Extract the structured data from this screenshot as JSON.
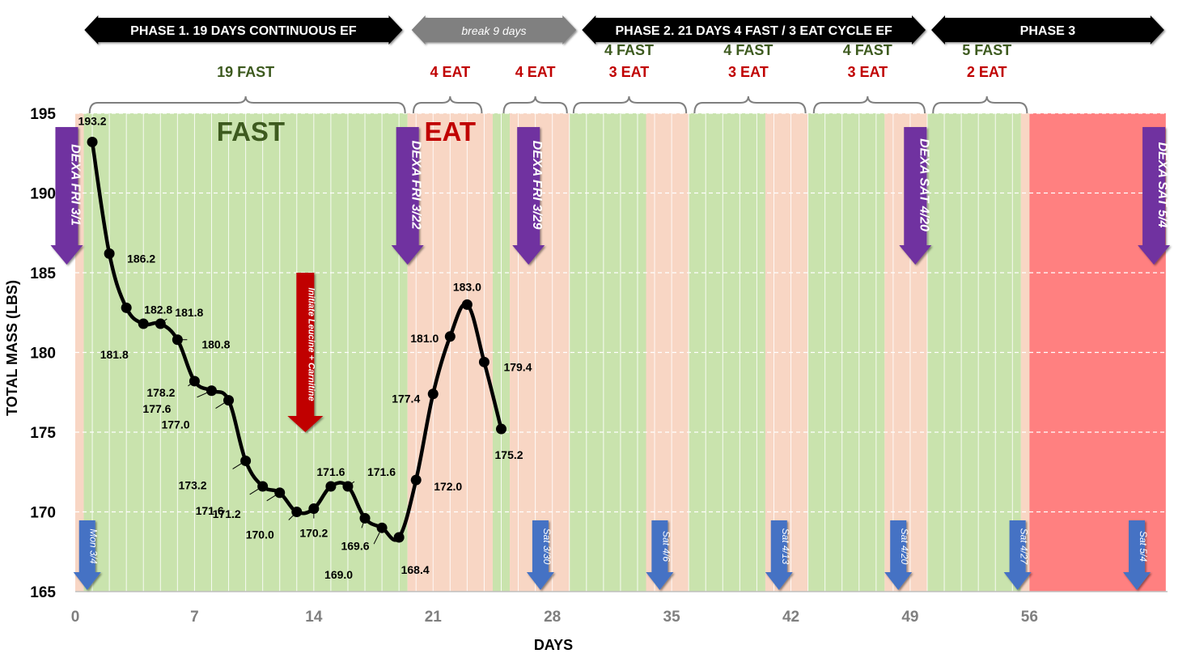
{
  "chart_data": {
    "type": "line",
    "xlabel": "DAYS",
    "ylabel": "TOTAL MASS (LBS)",
    "xlim": [
      0,
      64
    ],
    "ylim": [
      165,
      195
    ],
    "x_ticks": [
      0,
      7,
      14,
      21,
      28,
      35,
      42,
      49,
      56
    ],
    "y_ticks": [
      165,
      170,
      175,
      180,
      185,
      190,
      195
    ],
    "grid": "horizontal dashed white + vertical daily white lines",
    "colors": {
      "fast_band": "#c9e3ad",
      "eat_band": "#f8d6c4",
      "phase3_band": "#ff8080",
      "line": "#000000",
      "fast_text": "#3d5a1f",
      "eat_text": "#c00000",
      "dexa_arrow": "#7030a0",
      "sat_arrow": "#4472c4",
      "leucine_arrow": "#c00000",
      "phase_arrow": "#000000",
      "break_arrow": "#808080"
    },
    "series": [
      {
        "x": [
          1,
          2,
          3,
          4,
          5,
          6,
          7,
          8,
          9,
          10,
          11,
          12,
          13,
          14,
          15,
          16,
          17,
          18,
          19,
          20,
          21,
          22,
          23,
          24,
          25
        ],
        "values": [
          193.2,
          186.2,
          182.8,
          181.8,
          181.8,
          180.8,
          178.2,
          177.6,
          177.0,
          173.2,
          171.6,
          171.2,
          170.0,
          170.2,
          171.6,
          171.6,
          169.6,
          169.0,
          168.4,
          172.0,
          177.4,
          181.0,
          183.0,
          179.4,
          175.2
        ],
        "labels": [
          "193.2",
          "186.2",
          "182.8",
          "181.8",
          "181.8",
          "180.8",
          "178.2",
          "177.6",
          "177.0",
          "173.2",
          "171.6",
          "171.2",
          "170.0",
          "170.2",
          "171.6",
          "171.6",
          "169.6",
          "169.0",
          "168.4",
          "172.0",
          "177.4",
          "181.0",
          "183.0",
          "179.4",
          "175.2"
        ]
      }
    ],
    "bands": [
      {
        "start": 0,
        "end": 0.5,
        "kind": "eat"
      },
      {
        "start": 0.5,
        "end": 19.5,
        "kind": "fast"
      },
      {
        "start": 19.5,
        "end": 24.5,
        "kind": "eat"
      },
      {
        "start": 24.5,
        "end": 25.5,
        "kind": "fast"
      },
      {
        "start": 25.5,
        "end": 29.0,
        "kind": "eat"
      },
      {
        "start": 29.0,
        "end": 33.5,
        "kind": "fast"
      },
      {
        "start": 33.5,
        "end": 36.0,
        "kind": "eat"
      },
      {
        "start": 36.0,
        "end": 40.5,
        "kind": "fast"
      },
      {
        "start": 40.5,
        "end": 43.0,
        "kind": "eat"
      },
      {
        "start": 43.0,
        "end": 47.5,
        "kind": "fast"
      },
      {
        "start": 47.5,
        "end": 50.0,
        "kind": "eat"
      },
      {
        "start": 50.0,
        "end": 55.5,
        "kind": "fast"
      },
      {
        "start": 55.5,
        "end": 56.0,
        "kind": "eat"
      },
      {
        "start": 56.0,
        "end": 64.0,
        "kind": "phase3"
      }
    ],
    "phase_arrows": [
      {
        "start": 0.3,
        "end": 19.3,
        "text": "PHASE 1. 19 DAYS CONTINUOUS EF",
        "kind": "phase"
      },
      {
        "start": 19.5,
        "end": 29.5,
        "text": "break 9 days",
        "kind": "break"
      },
      {
        "start": 29.5,
        "end": 50.0,
        "text": "PHASE 2. 21 DAYS 4 FAST / 3 EAT CYCLE EF",
        "kind": "phase"
      },
      {
        "start": 50.0,
        "end": 64.0,
        "text": "PHASE 3",
        "kind": "phase"
      }
    ],
    "brace_labels": [
      {
        "center": 10.0,
        "start": 0.7,
        "end": 19.5,
        "lines": [
          {
            "text": "19 FAST",
            "kind": "fast"
          }
        ]
      },
      {
        "center": 22.0,
        "start": 19.7,
        "end": 24.0,
        "lines": [
          {
            "text": "4 EAT",
            "kind": "eat"
          }
        ]
      },
      {
        "center": 27.0,
        "start": 25.0,
        "end": 29.0,
        "lines": [
          {
            "text": "4 EAT",
            "kind": "eat"
          }
        ]
      },
      {
        "center": 32.5,
        "start": 29.1,
        "end": 36.0,
        "lines": [
          {
            "text": "4 FAST",
            "kind": "fast"
          },
          {
            "text": "3 EAT",
            "kind": "eat"
          }
        ]
      },
      {
        "center": 39.5,
        "start": 36.2,
        "end": 43.0,
        "lines": [
          {
            "text": "4 FAST",
            "kind": "fast"
          },
          {
            "text": "3 EAT",
            "kind": "eat"
          }
        ]
      },
      {
        "center": 46.5,
        "start": 43.2,
        "end": 50.0,
        "lines": [
          {
            "text": "4 FAST",
            "kind": "fast"
          },
          {
            "text": "3 EAT",
            "kind": "eat"
          }
        ]
      },
      {
        "center": 53.5,
        "start": 50.2,
        "end": 56.0,
        "lines": [
          {
            "text": "5 FAST",
            "kind": "fast"
          },
          {
            "text": "2 EAT",
            "kind": "eat"
          }
        ]
      }
    ],
    "region_labels": [
      {
        "text": "FAST",
        "x": 10.3,
        "kind": "fast"
      },
      {
        "text": "EAT",
        "x": 22.0,
        "kind": "eat"
      }
    ],
    "dexa_markers": [
      {
        "x": -0.5,
        "text": "DEXA FRI 3/1"
      },
      {
        "x": 19.5,
        "text": "DEXA FRI 3/22"
      },
      {
        "x": 26.6,
        "text": "DEXA FRI 3/29"
      },
      {
        "x": 49.3,
        "text": "DEXA SAT 4/20"
      },
      {
        "x": 63.3,
        "text": "DEXA SAT 5/4"
      }
    ],
    "date_markers": [
      {
        "x": 0.7,
        "text": "Mon 3/4"
      },
      {
        "x": 27.3,
        "text": "Sat 3/30"
      },
      {
        "x": 34.3,
        "text": "Sat 4/6"
      },
      {
        "x": 41.3,
        "text": "Sat 4/13"
      },
      {
        "x": 48.3,
        "text": "Sat 4/20"
      },
      {
        "x": 55.3,
        "text": "Sat 4/27"
      },
      {
        "x": 62.3,
        "text": "Sat 5/4"
      }
    ],
    "annotation": {
      "x": 13.5,
      "y_top": 185,
      "y_bottom": 175,
      "text": "Initiate Leucine + Carnitine"
    }
  }
}
